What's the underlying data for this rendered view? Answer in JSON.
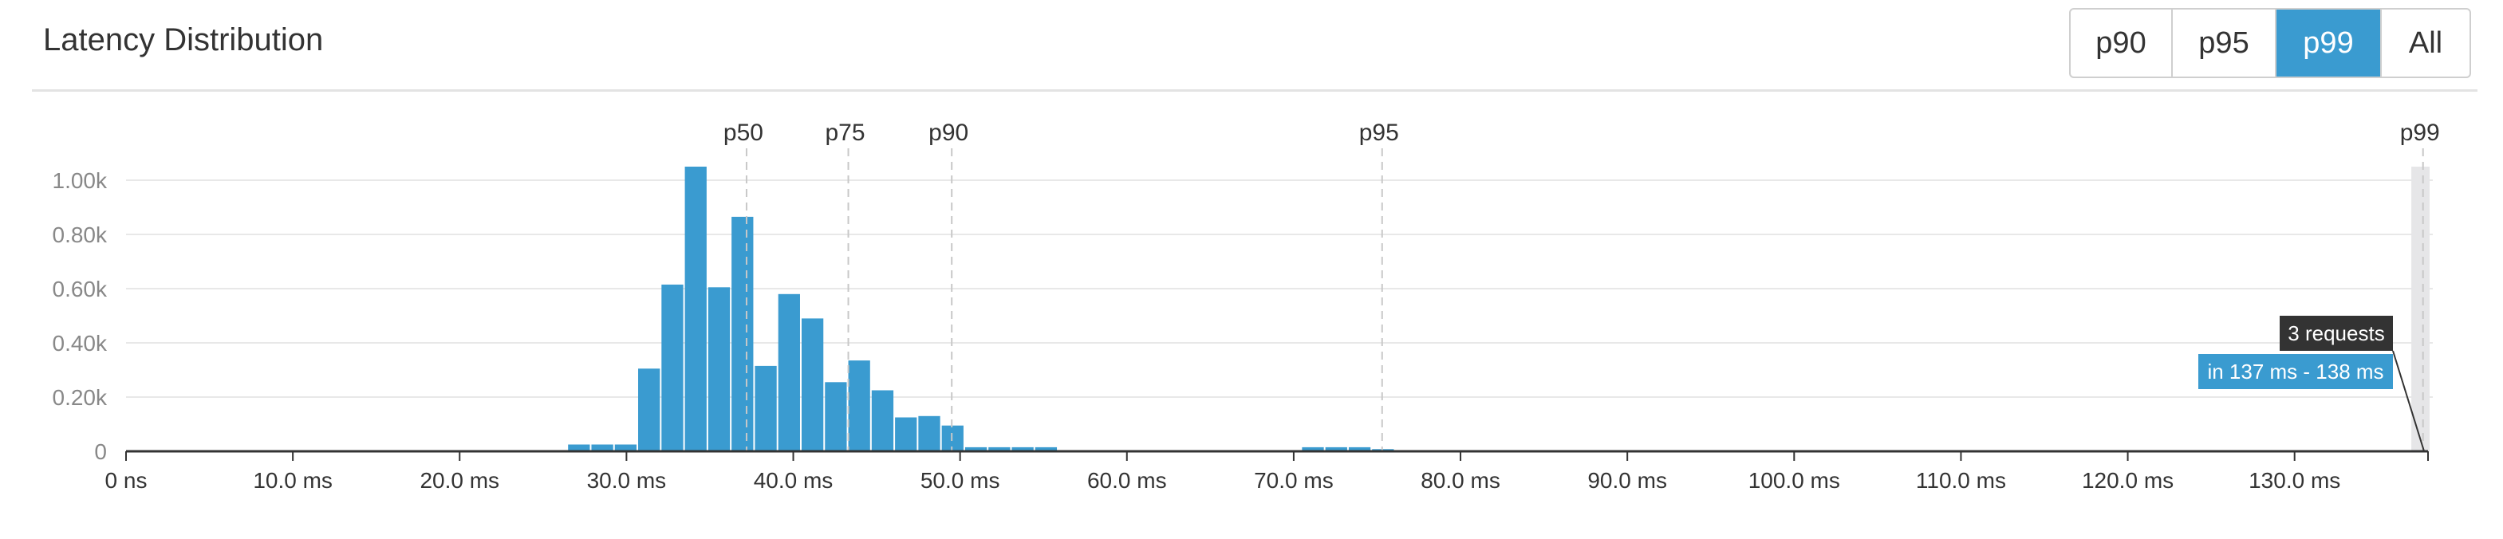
{
  "panel": {
    "title": "Latency Distribution"
  },
  "percentile_buttons": [
    {
      "label": "p90",
      "active": false
    },
    {
      "label": "p95",
      "active": false
    },
    {
      "label": "p99",
      "active": true
    },
    {
      "label": "All",
      "active": false
    }
  ],
  "colors": {
    "bar": "#3a9bd0",
    "button_active": "#3a9bd0",
    "tooltip_dark": "#333333",
    "tooltip_blue": "#3a9bd0",
    "highlight": "#e6e6e8"
  },
  "tooltip": {
    "count": "3 requests",
    "range": "in 137 ms - 138 ms"
  },
  "chart_data": {
    "type": "bar",
    "x_unit": "ms",
    "xlim": [
      0,
      138
    ],
    "ylim": [
      0,
      1050
    ],
    "x_ticks": [
      0,
      10,
      20,
      30,
      40,
      50,
      60,
      70,
      80,
      90,
      100,
      110,
      120,
      130
    ],
    "x_tick_labels": [
      "0 ns",
      "10.0 ms",
      "20.0 ms",
      "30.0 ms",
      "40.0 ms",
      "50.0 ms",
      "60.0 ms",
      "70.0 ms",
      "80.0 ms",
      "90.0 ms",
      "100.0 ms",
      "110.0 ms",
      "120.0 ms",
      "130.0 ms"
    ],
    "y_ticks": [
      0,
      200,
      400,
      600,
      800,
      1000
    ],
    "y_tick_labels": [
      "0",
      "0.20k",
      "0.40k",
      "0.60k",
      "0.80k",
      "1.00k"
    ],
    "grid": true,
    "bins": [
      {
        "start": 26.5,
        "end": 27.9,
        "count": 25
      },
      {
        "start": 27.9,
        "end": 29.3,
        "count": 25
      },
      {
        "start": 29.3,
        "end": 30.7,
        "count": 25
      },
      {
        "start": 30.7,
        "end": 32.1,
        "count": 305
      },
      {
        "start": 32.1,
        "end": 33.5,
        "count": 615
      },
      {
        "start": 33.5,
        "end": 34.9,
        "count": 1050
      },
      {
        "start": 34.9,
        "end": 36.3,
        "count": 605
      },
      {
        "start": 36.3,
        "end": 37.7,
        "count": 865
      },
      {
        "start": 37.7,
        "end": 39.1,
        "count": 315
      },
      {
        "start": 39.1,
        "end": 40.5,
        "count": 580
      },
      {
        "start": 40.5,
        "end": 41.9,
        "count": 490
      },
      {
        "start": 41.9,
        "end": 43.3,
        "count": 255
      },
      {
        "start": 43.3,
        "end": 44.7,
        "count": 335
      },
      {
        "start": 44.7,
        "end": 46.1,
        "count": 225
      },
      {
        "start": 46.1,
        "end": 47.5,
        "count": 125
      },
      {
        "start": 47.5,
        "end": 48.9,
        "count": 130
      },
      {
        "start": 48.9,
        "end": 50.3,
        "count": 95
      },
      {
        "start": 50.3,
        "end": 51.7,
        "count": 15
      },
      {
        "start": 51.7,
        "end": 53.1,
        "count": 15
      },
      {
        "start": 53.1,
        "end": 54.5,
        "count": 15
      },
      {
        "start": 54.5,
        "end": 55.9,
        "count": 15
      },
      {
        "start": 70.5,
        "end": 71.9,
        "count": 15
      },
      {
        "start": 71.9,
        "end": 73.3,
        "count": 15
      },
      {
        "start": 73.3,
        "end": 74.7,
        "count": 15
      },
      {
        "start": 74.7,
        "end": 76.1,
        "count": 8
      }
    ],
    "percentiles": [
      {
        "label": "p50",
        "value": 37.2
      },
      {
        "label": "p75",
        "value": 43.3
      },
      {
        "label": "p90",
        "value": 49.5
      },
      {
        "label": "p95",
        "value": 75.3
      },
      {
        "label": "p99",
        "value": 137.7
      }
    ],
    "highlight_bin": {
      "start": 137,
      "end": 138,
      "count": 3
    }
  }
}
